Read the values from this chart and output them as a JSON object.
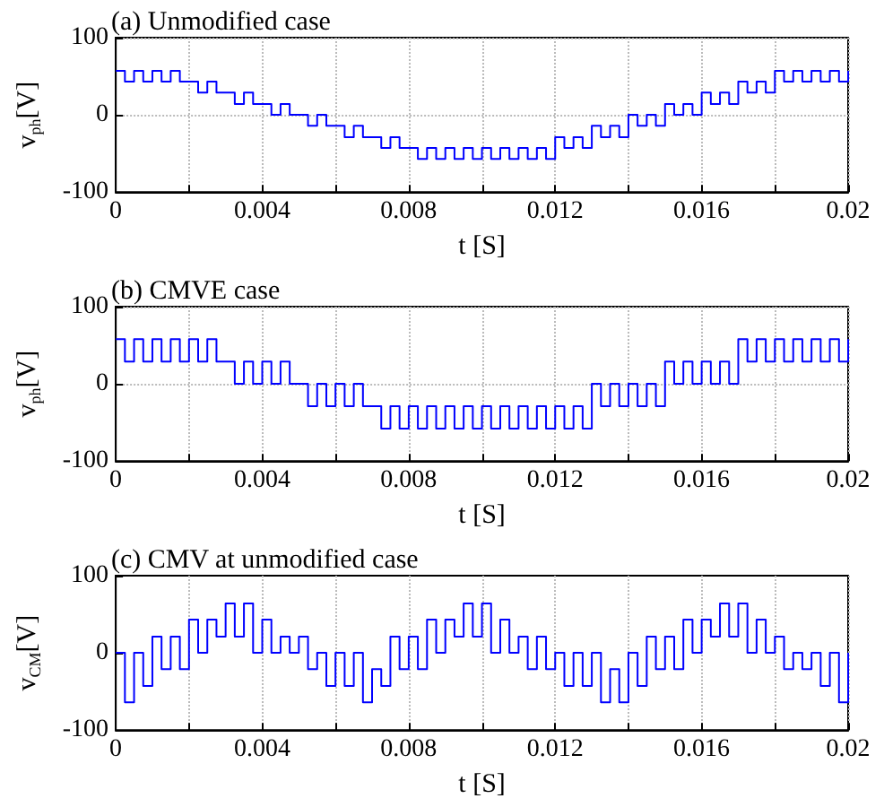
{
  "chart_data": [
    {
      "type": "step",
      "title": "(a) Unmodified case",
      "xlabel": "t [S]",
      "ylabel": "v$_{ph}$[V]",
      "xlim": [
        0,
        0.02
      ],
      "ylim": [
        -100,
        100
      ],
      "xticks": [
        0,
        {
          "value": 0.002,
          "label": null
        },
        0.004,
        {
          "value": 0.006,
          "label": null
        },
        0.008,
        {
          "value": 0.01,
          "label": null
        },
        0.012,
        {
          "value": 0.014,
          "label": null
        },
        0.016,
        {
          "value": 0.018,
          "label": null
        },
        0.02
      ],
      "yticks": [
        -100,
        0,
        100
      ],
      "grid": true,
      "x": [
        0,
        0.00025,
        0.0005,
        0.00075,
        0.001,
        0.00125,
        0.0015,
        0.00175,
        0.002,
        0.00225,
        0.0025,
        0.00275,
        0.003,
        0.00325,
        0.0035,
        0.00375,
        0.004,
        0.00425,
        0.0045,
        0.00475,
        0.005,
        0.00525,
        0.0055,
        0.00575,
        0.006,
        0.00625,
        0.0065,
        0.00675,
        0.007,
        0.00725,
        0.0075,
        0.00775,
        0.008,
        0.00825,
        0.0085,
        0.00875,
        0.009,
        0.00925,
        0.0095,
        0.00975,
        0.01,
        0.01025,
        0.0105,
        0.01075,
        0.011,
        0.01125,
        0.0115,
        0.01175,
        0.012,
        0.01225,
        0.0125,
        0.01275,
        0.013,
        0.01325,
        0.0135,
        0.01375,
        0.014,
        0.01425,
        0.0145,
        0.01475,
        0.015,
        0.01525,
        0.0155,
        0.01575,
        0.016,
        0.01625,
        0.0165,
        0.01675,
        0.017,
        0.01725,
        0.0175,
        0.01775,
        0.018,
        0.01825,
        0.0185,
        0.01875,
        0.019,
        0.01925,
        0.0195,
        0.01975,
        0.02
      ],
      "series": [
        {
          "color": "#0000ff",
          "values": [
            57,
            43,
            57,
            43,
            57,
            43,
            57,
            43,
            43,
            29,
            43,
            29,
            29,
            14,
            29,
            14,
            14,
            0,
            14,
            0,
            0,
            -14,
            0,
            -14,
            -14,
            -29,
            -14,
            -29,
            -29,
            -43,
            -29,
            -43,
            -43,
            -57,
            -43,
            -57,
            -43,
            -57,
            -43,
            -57,
            -43,
            -57,
            -43,
            -57,
            -43,
            -57,
            -43,
            -57,
            -29,
            -43,
            -29,
            -43,
            -14,
            -29,
            -14,
            -29,
            0,
            -14,
            0,
            -14,
            14,
            0,
            14,
            0,
            29,
            14,
            29,
            14,
            43,
            29,
            43,
            29,
            57,
            43,
            57,
            43,
            57,
            43,
            57,
            43,
            57
          ]
        }
      ]
    },
    {
      "type": "step",
      "title": "(b) CMVE case",
      "xlabel": "t [S]",
      "ylabel": "v$_{ph}$[V]",
      "xlim": [
        0,
        0.02
      ],
      "ylim": [
        -100,
        100
      ],
      "xticks": [
        0,
        {
          "value": 0.002,
          "label": null
        },
        0.004,
        {
          "value": 0.006,
          "label": null
        },
        0.008,
        {
          "value": 0.01,
          "label": null
        },
        0.012,
        {
          "value": 0.014,
          "label": null
        },
        0.016,
        {
          "value": 0.018,
          "label": null
        },
        0.02
      ],
      "yticks": [
        -100,
        0,
        100
      ],
      "grid": true,
      "x": [
        0,
        0.00025,
        0.0005,
        0.00075,
        0.001,
        0.00125,
        0.0015,
        0.00175,
        0.002,
        0.00225,
        0.0025,
        0.00275,
        0.003,
        0.00325,
        0.0035,
        0.00375,
        0.004,
        0.00425,
        0.0045,
        0.00475,
        0.005,
        0.00525,
        0.0055,
        0.00575,
        0.006,
        0.00625,
        0.0065,
        0.00675,
        0.007,
        0.00725,
        0.0075,
        0.00775,
        0.008,
        0.00825,
        0.0085,
        0.00875,
        0.009,
        0.00925,
        0.0095,
        0.00975,
        0.01,
        0.01025,
        0.0105,
        0.01075,
        0.011,
        0.01125,
        0.0115,
        0.01175,
        0.012,
        0.01225,
        0.0125,
        0.01275,
        0.013,
        0.01325,
        0.0135,
        0.01375,
        0.014,
        0.01425,
        0.0145,
        0.01475,
        0.015,
        0.01525,
        0.0155,
        0.01575,
        0.016,
        0.01625,
        0.0165,
        0.01675,
        0.017,
        0.01725,
        0.0175,
        0.01775,
        0.018,
        0.01825,
        0.0185,
        0.01875,
        0.019,
        0.01925,
        0.0195,
        0.01975,
        0.02
      ],
      "series": [
        {
          "color": "#0000ff",
          "values": [
            58,
            29,
            58,
            29,
            58,
            29,
            58,
            29,
            58,
            29,
            58,
            29,
            29,
            0,
            29,
            0,
            29,
            0,
            29,
            0,
            0,
            -29,
            0,
            -29,
            0,
            -29,
            0,
            -29,
            -29,
            -58,
            -29,
            -58,
            -29,
            -58,
            -29,
            -58,
            -29,
            -58,
            -29,
            -58,
            -29,
            -58,
            -29,
            -58,
            -29,
            -58,
            -29,
            -58,
            -29,
            -58,
            -29,
            -58,
            0,
            -29,
            0,
            -29,
            0,
            -29,
            0,
            -29,
            29,
            0,
            29,
            0,
            29,
            0,
            29,
            0,
            58,
            29,
            58,
            29,
            58,
            29,
            58,
            29,
            58,
            29,
            58,
            29,
            58
          ]
        }
      ]
    },
    {
      "type": "step",
      "title": "(c) CMV at unmodified case",
      "xlabel": "t [S]",
      "ylabel": "v$_{CM}$[V]",
      "xlim": [
        0,
        0.02
      ],
      "ylim": [
        -100,
        100
      ],
      "xticks": [
        0,
        {
          "value": 0.002,
          "label": null
        },
        0.004,
        {
          "value": 0.006,
          "label": null
        },
        0.008,
        {
          "value": 0.01,
          "label": null
        },
        0.012,
        {
          "value": 0.014,
          "label": null
        },
        0.016,
        {
          "value": 0.018,
          "label": null
        },
        0.02
      ],
      "yticks": [
        -100,
        0,
        100
      ],
      "grid": "x",
      "x": [
        0,
        0.00025,
        0.0005,
        0.00075,
        0.001,
        0.00125,
        0.0015,
        0.00175,
        0.002,
        0.00225,
        0.0025,
        0.00275,
        0.003,
        0.00325,
        0.0035,
        0.00375,
        0.004,
        0.00425,
        0.0045,
        0.00475,
        0.005,
        0.00525,
        0.0055,
        0.00575,
        0.006,
        0.00625,
        0.0065,
        0.00675,
        0.007,
        0.00725,
        0.0075,
        0.00775,
        0.008,
        0.00825,
        0.0085,
        0.00875,
        0.009,
        0.00925,
        0.0095,
        0.00975,
        0.01,
        0.01025,
        0.0105,
        0.01075,
        0.011,
        0.01125,
        0.0115,
        0.01175,
        0.012,
        0.01225,
        0.0125,
        0.01275,
        0.013,
        0.01325,
        0.0135,
        0.01375,
        0.014,
        0.01425,
        0.0145,
        0.01475,
        0.015,
        0.01525,
        0.0155,
        0.01575,
        0.016,
        0.01625,
        0.0165,
        0.01675,
        0.017,
        0.01725,
        0.0175,
        0.01775,
        0.018,
        0.01825,
        0.0185,
        0.01875,
        0.019,
        0.01925,
        0.0195,
        0.01975,
        0.02
      ],
      "series": [
        {
          "color": "#0000ff",
          "values": [
            0,
            -64,
            0,
            -43,
            21,
            -21,
            21,
            -21,
            43,
            0,
            43,
            21,
            64,
            21,
            64,
            0,
            43,
            0,
            21,
            0,
            21,
            -21,
            0,
            -43,
            0,
            -43,
            0,
            -64,
            -21,
            -43,
            21,
            -21,
            21,
            -21,
            43,
            0,
            43,
            21,
            64,
            21,
            64,
            0,
            43,
            0,
            21,
            -21,
            21,
            -21,
            0,
            -43,
            0,
            -43,
            0,
            -64,
            -21,
            -64,
            0,
            -43,
            21,
            -21,
            21,
            -21,
            43,
            0,
            43,
            21,
            64,
            21,
            64,
            0,
            43,
            0,
            21,
            -21,
            0,
            -21,
            0,
            -43,
            0,
            -64,
            0
          ]
        }
      ]
    }
  ]
}
